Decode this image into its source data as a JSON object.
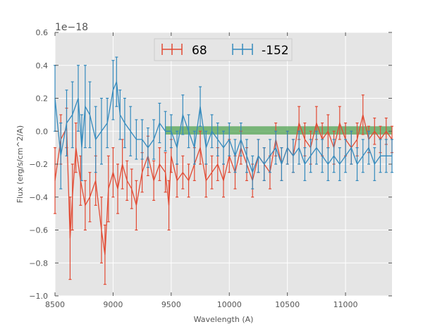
{
  "chart_data": {
    "type": "line",
    "title": "",
    "xlabel": "Wavelength (A)",
    "ylabel": "Flux (erg/s/cm^2/A)",
    "y_scale_label": "1e−18",
    "xlim": [
      8500,
      11400
    ],
    "ylim": [
      -1.0,
      0.6
    ],
    "x_ticks": [
      8500,
      9000,
      9500,
      10000,
      10500,
      11000
    ],
    "x_tick_labels": [
      "8500",
      "9000",
      "9500",
      "10000",
      "10500",
      "11000"
    ],
    "y_ticks": [
      -1.0,
      -0.8,
      -0.6,
      -0.4,
      -0.2,
      0.0,
      0.2,
      0.4,
      0.6
    ],
    "y_tick_labels": [
      "−1.0",
      "−0.8",
      "−0.6",
      "−0.4",
      "−0.2",
      "0.0",
      "0.2",
      "0.4",
      "0.6"
    ],
    "grid": true,
    "legend_position": "top-center",
    "band": {
      "x_start": 9450,
      "x_end": 11400,
      "y_low": -0.02,
      "y_high": 0.03,
      "color": "#3c9a3c"
    },
    "series": [
      {
        "name": "68",
        "color": "#e24a33",
        "x": [
          8500,
          8550,
          8600,
          8630,
          8650,
          8680,
          8720,
          8760,
          8800,
          8850,
          8900,
          8930,
          8960,
          9000,
          9040,
          9080,
          9120,
          9160,
          9200,
          9250,
          9300,
          9350,
          9400,
          9450,
          9480,
          9500,
          9550,
          9600,
          9650,
          9700,
          9750,
          9800,
          9850,
          9900,
          9950,
          10000,
          10050,
          10100,
          10150,
          10200,
          10250,
          10300,
          10350,
          10400,
          10450,
          10500,
          10550,
          10600,
          10650,
          10700,
          10750,
          10800,
          10850,
          10900,
          10950,
          11000,
          11050,
          11100,
          11150,
          11200,
          11250,
          11300,
          11350,
          11400
        ],
        "y": [
          -0.3,
          -0.05,
          0.02,
          -0.65,
          -0.4,
          -0.1,
          -0.3,
          -0.45,
          -0.4,
          -0.3,
          -0.6,
          -0.75,
          -0.35,
          -0.25,
          -0.35,
          -0.2,
          -0.3,
          -0.35,
          -0.45,
          -0.25,
          -0.15,
          -0.3,
          -0.2,
          -0.25,
          -0.45,
          -0.15,
          -0.3,
          -0.25,
          -0.3,
          -0.2,
          -0.1,
          -0.3,
          -0.25,
          -0.2,
          -0.3,
          -0.15,
          -0.25,
          -0.1,
          -0.2,
          -0.3,
          -0.15,
          -0.2,
          -0.25,
          -0.05,
          -0.2,
          -0.1,
          -0.15,
          0.05,
          -0.05,
          -0.1,
          0.05,
          -0.05,
          0.0,
          -0.1,
          0.05,
          -0.05,
          -0.1,
          -0.05,
          0.1,
          -0.05,
          0.0,
          -0.05,
          0.0,
          -0.05
        ],
        "err": [
          0.2,
          0.15,
          0.12,
          0.25,
          0.2,
          0.15,
          0.15,
          0.15,
          0.15,
          0.15,
          0.2,
          0.18,
          0.2,
          0.15,
          0.15,
          0.15,
          0.12,
          0.12,
          0.15,
          0.12,
          0.12,
          0.12,
          0.1,
          0.12,
          0.15,
          0.1,
          0.1,
          0.1,
          0.1,
          0.1,
          0.1,
          0.1,
          0.1,
          0.1,
          0.1,
          0.1,
          0.1,
          0.1,
          0.1,
          0.1,
          0.1,
          0.1,
          0.1,
          0.1,
          0.1,
          0.1,
          0.1,
          0.1,
          0.1,
          0.1,
          0.1,
          0.1,
          0.1,
          0.1,
          0.1,
          0.1,
          0.1,
          0.1,
          0.12,
          0.08,
          0.08,
          0.08,
          0.08,
          0.08
        ]
      },
      {
        "name": "-152",
        "color": "#348abd",
        "x": [
          8500,
          8550,
          8600,
          8650,
          8700,
          8730,
          8760,
          8800,
          8850,
          8900,
          8950,
          9000,
          9030,
          9060,
          9100,
          9150,
          9200,
          9250,
          9300,
          9350,
          9400,
          9450,
          9500,
          9550,
          9600,
          9650,
          9700,
          9750,
          9800,
          9850,
          9900,
          9950,
          10000,
          10050,
          10100,
          10150,
          10200,
          10250,
          10300,
          10350,
          10400,
          10450,
          10500,
          10550,
          10600,
          10650,
          10700,
          10750,
          10800,
          10850,
          10900,
          10950,
          11000,
          11050,
          11100,
          11150,
          11200,
          11250,
          11300,
          11350,
          11400
        ],
        "y": [
          0.2,
          -0.15,
          0.05,
          0.1,
          0.2,
          -0.1,
          0.15,
          0.1,
          -0.05,
          0.0,
          0.05,
          0.25,
          0.3,
          0.1,
          0.05,
          0.0,
          -0.05,
          -0.05,
          -0.1,
          -0.05,
          0.05,
          0.0,
          0.0,
          -0.1,
          0.1,
          0.0,
          -0.1,
          0.15,
          -0.1,
          0.0,
          -0.05,
          -0.1,
          -0.05,
          -0.15,
          -0.05,
          -0.15,
          -0.25,
          -0.15,
          -0.2,
          -0.15,
          -0.1,
          -0.2,
          -0.1,
          -0.15,
          -0.1,
          -0.2,
          -0.15,
          -0.1,
          -0.15,
          -0.2,
          -0.15,
          -0.2,
          -0.15,
          -0.1,
          -0.2,
          -0.15,
          -0.1,
          -0.2,
          -0.15,
          -0.15,
          -0.15
        ],
        "err": [
          0.2,
          0.2,
          0.2,
          0.2,
          0.2,
          0.2,
          0.25,
          0.2,
          0.2,
          0.2,
          0.15,
          0.18,
          0.15,
          0.15,
          0.15,
          0.15,
          0.12,
          0.12,
          0.12,
          0.12,
          0.12,
          0.12,
          0.1,
          0.1,
          0.12,
          0.1,
          0.1,
          0.12,
          0.1,
          0.1,
          0.1,
          0.1,
          0.1,
          0.1,
          0.1,
          0.1,
          0.1,
          0.1,
          0.1,
          0.1,
          0.1,
          0.1,
          0.1,
          0.1,
          0.1,
          0.1,
          0.1,
          0.1,
          0.1,
          0.1,
          0.1,
          0.1,
          0.1,
          0.1,
          0.1,
          0.1,
          0.1,
          0.1,
          0.1,
          0.1,
          0.1
        ]
      }
    ]
  }
}
